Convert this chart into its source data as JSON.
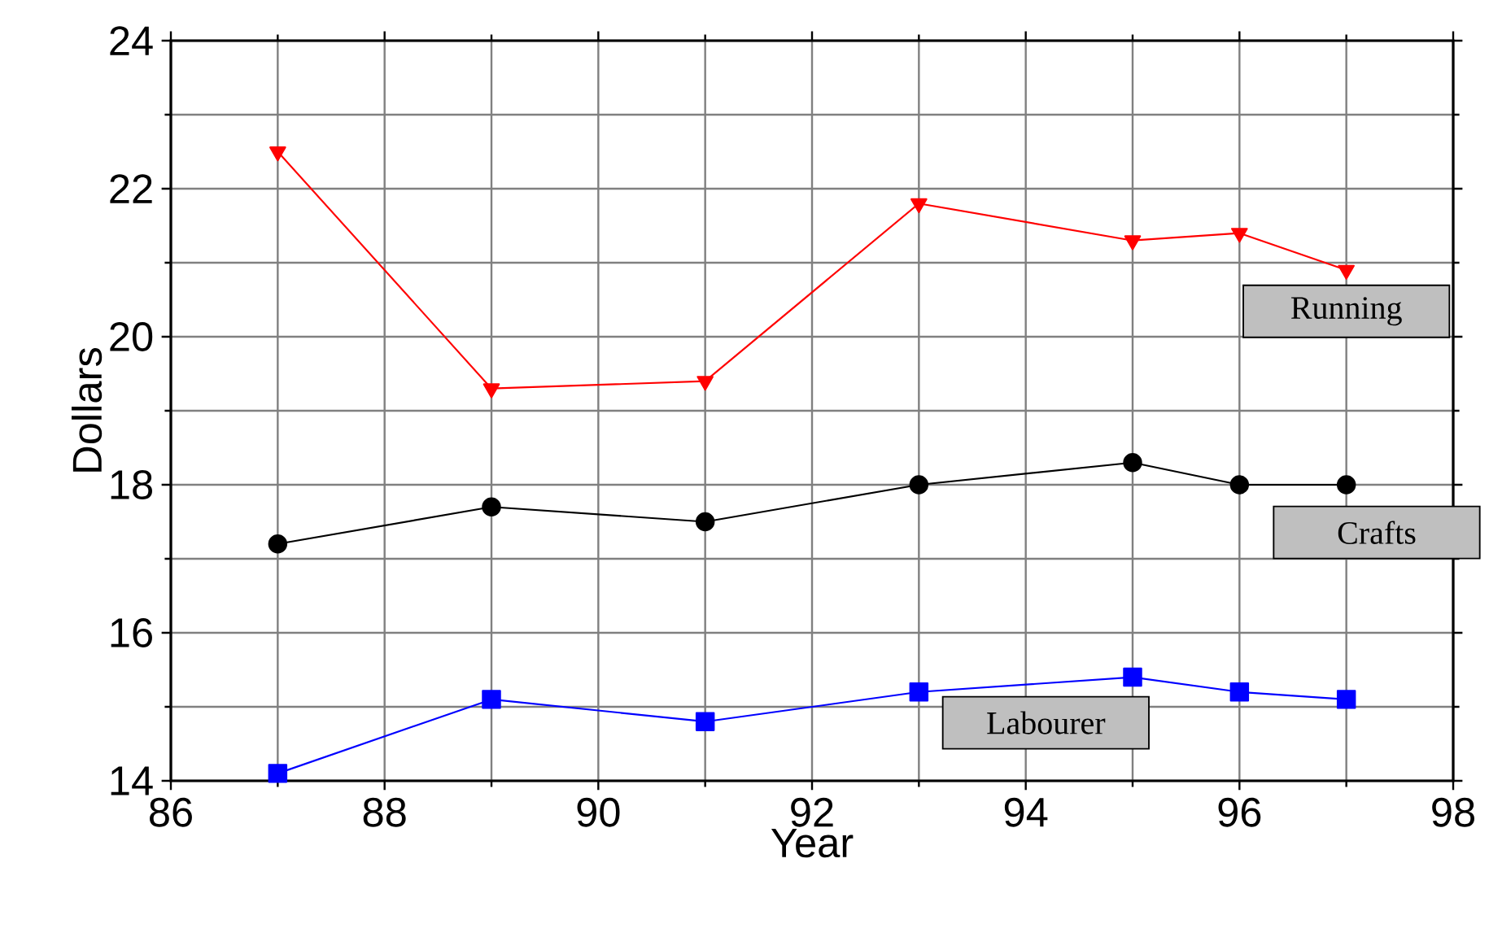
{
  "chart_data": {
    "type": "line",
    "xlabel": "Year",
    "ylabel": "Dollars",
    "x": [
      87,
      89,
      91,
      93,
      95,
      96,
      97
    ],
    "series": [
      {
        "name": "Running",
        "color": "#ff0000",
        "marker": "triangle",
        "values": [
          22.5,
          19.3,
          19.4,
          21.8,
          21.3,
          21.4,
          20.9
        ]
      },
      {
        "name": "Crafts",
        "color": "#000000",
        "marker": "circle",
        "values": [
          17.2,
          17.7,
          17.5,
          18.0,
          18.3,
          18.0,
          18.0
        ]
      },
      {
        "name": "Labourer",
        "color": "#0000ff",
        "marker": "square",
        "values": [
          14.1,
          15.1,
          14.8,
          15.2,
          15.4,
          15.2,
          15.1
        ]
      }
    ],
    "xlim": [
      86,
      98
    ],
    "xticks": [
      86,
      88,
      90,
      92,
      94,
      96,
      98
    ],
    "ylim": [
      14,
      24
    ],
    "yticks": [
      14,
      16,
      18,
      20,
      22,
      24
    ],
    "grid": true,
    "legend": false,
    "line_style": "solid"
  }
}
